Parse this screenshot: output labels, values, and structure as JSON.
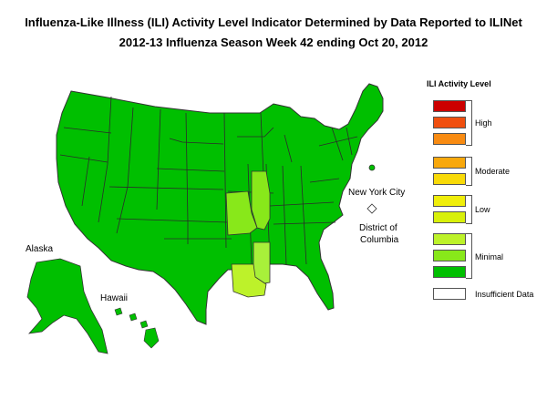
{
  "title": {
    "line1": "Influenza-Like Illness (ILI) Activity Level Indicator Determined by Data Reported to ILINet",
    "line2": "2012-13  Influenza Season Week  42 ending Oct 20, 2012"
  },
  "labels": {
    "alaska": "Alaska",
    "hawaii": "Hawaii",
    "nyc": "New York City",
    "dc_line1": "District of",
    "dc_line2": "Columbia"
  },
  "legend": {
    "title": "ILI Activity Level",
    "levels": [
      {
        "level": 10,
        "color": "#cc0000"
      },
      {
        "level": 9,
        "color": "#f04f0f"
      },
      {
        "level": 8,
        "color": "#f88b12"
      },
      {
        "level": 7,
        "color": "#f8a80c"
      },
      {
        "level": 6,
        "color": "#f8da08"
      },
      {
        "level": 5,
        "color": "#f0ee0a"
      },
      {
        "level": 4,
        "color": "#d8f00a"
      },
      {
        "level": 3,
        "color": "#bdf22a"
      },
      {
        "level": 2,
        "color": "#88e81a"
      },
      {
        "level": 1,
        "color": "#00bf00"
      }
    ],
    "groups": {
      "high": "High",
      "moderate": "Moderate",
      "low": "Low",
      "minimal": "Minimal",
      "insufficient": "Insufficient Data"
    },
    "insufficient_color": "#ffffff"
  },
  "map_colors": {
    "base": "#00bf00",
    "illinois_missouri": "#88e81a",
    "mississippi": "#a8f03a",
    "louisiana": "#bdf22a",
    "border": "#333333"
  }
}
